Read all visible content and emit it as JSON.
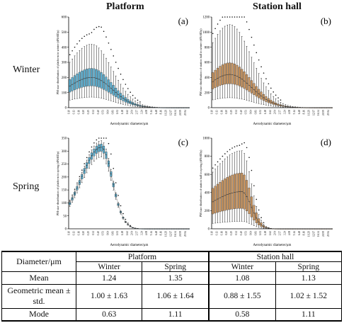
{
  "headers": {
    "platform": "Platform",
    "station_hall": "Station hall",
    "winter": "Winter",
    "spring": "Spring"
  },
  "colors": {
    "platform": "#5aaed0",
    "station_hall": "#c9935c",
    "whisker": "#222222"
  },
  "bins": [
    "0.10",
    "0.11",
    "0.13",
    "0.14",
    "0.16",
    "0.18",
    "0.20",
    "0.22",
    "0.25",
    "0.28",
    "0.32",
    "0.36",
    "0.40",
    "0.45",
    "0.51",
    "0.57",
    "0.64",
    "0.72",
    "0.81",
    "0.90",
    "1.02",
    "1.14",
    "1.28",
    "1.44",
    "1.62",
    "1.82",
    "2.04",
    "2.29",
    "2.57",
    "2.88",
    "3.24",
    "3.64",
    "4.08",
    "4.58",
    "5.14",
    "5.77",
    "6.48",
    "7.27",
    "8.16",
    "9.16",
    "10.29",
    "11.55",
    "12.97",
    "14.56",
    "16.34",
    "18.34",
    "20.59",
    "23.11",
    "25.94",
    "29.12"
  ],
  "chart_data": [
    {
      "type": "box",
      "panel_label": "(a)",
      "location": "Platform",
      "season": "Winter",
      "xlabel": "Aerodynamic diameter/μm",
      "ylabel": "PM size distribution of platform in winter (dN/dlDp)",
      "ylim": [
        0,
        600
      ],
      "yticks": [
        0,
        100,
        200,
        300,
        400,
        500,
        600
      ],
      "median_peak": 200,
      "median_peak_index": 9,
      "spread_left": 11,
      "spread_right": 8.5,
      "box_scale": [
        0.72,
        1.3
      ],
      "whisker_scale": [
        0.35,
        2.1
      ],
      "outlier_scale": 2.45,
      "shift_min": -0.5,
      "shift_max": 1.5
    },
    {
      "type": "box",
      "panel_label": "(b)",
      "location": "Station hall",
      "season": "Winter",
      "xlabel": "Aerodynamic diameter/μm",
      "ylabel": "PM size distribution of station hall in winter (dN/dlDp)",
      "ylim": [
        0,
        1200
      ],
      "yticks": [
        0,
        200,
        400,
        600,
        800,
        1000,
        1200
      ],
      "median_peak": 440,
      "median_peak_index": 7,
      "spread_left": 10,
      "spread_right": 9,
      "box_scale": [
        0.72,
        1.35
      ],
      "whisker_scale": [
        0.3,
        2.5
      ],
      "outlier_scale": 2.85,
      "shift_min": -0.5,
      "shift_max": 1.5
    },
    {
      "type": "box",
      "panel_label": "(c)",
      "location": "Platform",
      "season": "Spring",
      "xlabel": "Aerodynamic diameter/μm",
      "ylabel": "PM size distribution of platform in spring (dN/dlDp)",
      "ylim": [
        0,
        350
      ],
      "yticks": [
        0,
        50,
        100,
        150,
        200,
        250,
        300,
        350
      ],
      "median_peak": 315,
      "median_peak_index": 13,
      "spread_left": 8.5,
      "spread_right": 4.5,
      "box_scale": [
        0.95,
        1.04
      ],
      "whisker_scale": [
        0.88,
        1.08
      ],
      "outlier_scale": 1.12,
      "shift_min": -0.5,
      "shift_max": 1.5
    },
    {
      "type": "box",
      "panel_label": "(d)",
      "location": "Station hall",
      "season": "Spring",
      "xlabel": "Aerodynamic diameter/μm",
      "ylabel": "PM size distribution of station hall in spring (dN/dlDp)",
      "ylim": [
        0,
        1000
      ],
      "yticks": [
        0,
        200,
        400,
        600,
        800,
        1000
      ],
      "median_peak": 410,
      "median_peak_index": 12,
      "spread_left": 15,
      "spread_right": 3.8,
      "box_scale": [
        0.55,
        1.5
      ],
      "whisker_scale": [
        0.2,
        2.1
      ],
      "outlier_scale": 2.25,
      "shift_min": -0.5,
      "shift_max": 1.5
    }
  ],
  "table": {
    "header_label": "Diameter/μm",
    "group_platform": "Platform",
    "group_station_hall": "Station hall",
    "col_winter": "Winter",
    "col_spring": "Spring",
    "rows": [
      {
        "label": "Mean",
        "values": [
          "1.24",
          "1.35",
          "1.08",
          "1.13"
        ]
      },
      {
        "label": "Geometric mean ± std.",
        "values": [
          "1.00 ± 1.63",
          "1.06 ± 1.64",
          "0.88 ± 1.55",
          "1.02 ± 1.52"
        ]
      },
      {
        "label": "Mode",
        "values": [
          "0.63",
          "1.11",
          "0.58",
          "1.11"
        ]
      }
    ]
  }
}
